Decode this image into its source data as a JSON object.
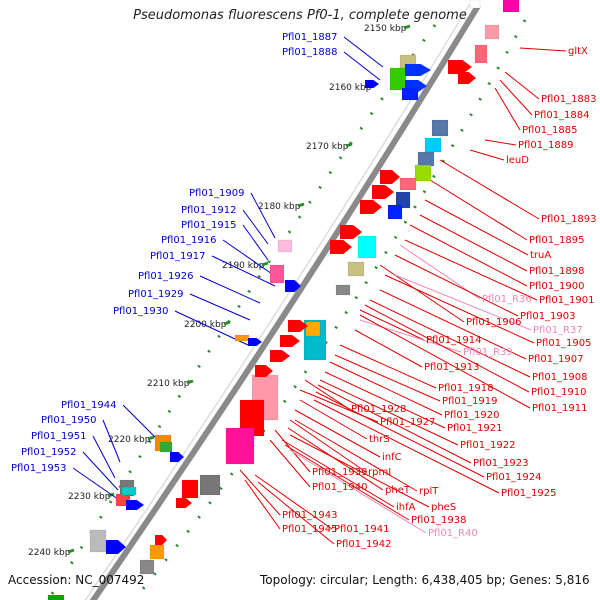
{
  "title": "Pseudomonas fluorescens Pf0-1, complete genome",
  "footer": {
    "accession": "Accession: NC_007492",
    "summary": "Topology: circular; Length: 6,438,405 bp; Genes: 5,816"
  },
  "ticks": [
    {
      "label": "2150 kbp",
      "partial": true
    },
    {
      "label": "2160 kbp"
    },
    {
      "label": "2170 kbp"
    },
    {
      "label": "2180 kbp"
    },
    {
      "label": "2190 kbp"
    },
    {
      "label": "2200 kbp"
    },
    {
      "label": "2210 kbp"
    },
    {
      "label": "2220 kbp"
    },
    {
      "label": "2230 kbp"
    },
    {
      "label": "2240 kbp"
    }
  ],
  "left_labels": [
    "Pfl01_1887",
    "Pfl01_1888",
    "Pfl01_1909",
    "Pfl01_1912",
    "Pfl01_1915",
    "Pfl01_1916",
    "Pfl01_1917",
    "Pfl01_1926",
    "Pfl01_1929",
    "Pfl01_1930",
    "Pfl01_1944",
    "Pfl01_1950",
    "Pfl01_1951",
    "Pfl01_1952",
    "Pfl01_1953"
  ],
  "right_labels": [
    "gltX",
    "Pfl01_1883",
    "Pfl01_1884",
    "Pfl01_1885",
    "Pfl01_1889",
    "leuD",
    "Pfl01_1893",
    "Pfl01_1895",
    "truA",
    "Pfl01_1898",
    "Pfl01_1900",
    "Pfl01_R36",
    "Pfl01_1901",
    "Pfl01_1903",
    "Pfl01_1906",
    "Pfl01_R37",
    "Pfl01_1905",
    "Pfl01_1914",
    "Pfl01_R39",
    "Pfl01_1907",
    "Pfl01_1913",
    "Pfl01_1908",
    "Pfl01_1918",
    "Pfl01_1910",
    "Pfl01_1919",
    "Pfl01_1911",
    "Pfl01_1928",
    "Pfl01_1920",
    "Pfl01_1927",
    "Pfl01_1921",
    "thrS",
    "Pfl01_1922",
    "infC",
    "Pfl01_1923",
    "rpmI",
    "Pfl01_1939",
    "Pfl01_1924",
    "Pfl01_1940",
    "pheT",
    "rplT",
    "Pfl01_1925",
    "pheS",
    "ihfA",
    "Pfl01_1943",
    "Pfl01_1938",
    "Pfl01_1945",
    "Pfl01_1941",
    "Pfl01_R40",
    "Pfl01_1942"
  ],
  "colors": {
    "left_label": "#0000cc",
    "right_label": "#e00000",
    "rna_label": "#ee88bb",
    "backbone": "#8a8a8a",
    "tick_dot": "#2e8b2e"
  }
}
